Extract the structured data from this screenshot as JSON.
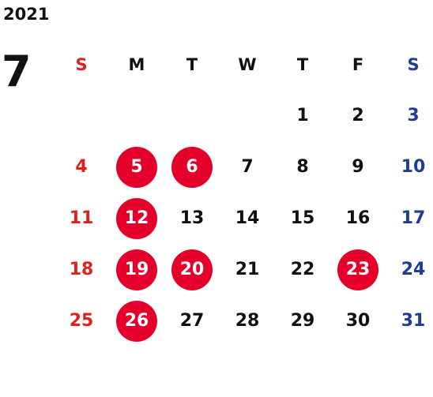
{
  "calendar": {
    "year": "2021",
    "month": "7",
    "weekdays": [
      "S",
      "M",
      "T",
      "W",
      "T",
      "F",
      "S"
    ],
    "colors": {
      "sunday": "#e0201e",
      "saturday": "#1d3e96",
      "holiday_circle": "#e4002b",
      "weekday": "#111111"
    },
    "weeks": [
      [
        "",
        "",
        "",
        "",
        "1",
        "2",
        "3"
      ],
      [
        "4",
        "5",
        "6",
        "7",
        "8",
        "9",
        "10"
      ],
      [
        "11",
        "12",
        "13",
        "14",
        "15",
        "16",
        "17"
      ],
      [
        "18",
        "19",
        "20",
        "21",
        "22",
        "23",
        "24"
      ],
      [
        "25",
        "26",
        "27",
        "28",
        "29",
        "30",
        "31"
      ]
    ],
    "highlighted_days": [
      "5",
      "6",
      "12",
      "19",
      "20",
      "23",
      "26"
    ]
  }
}
